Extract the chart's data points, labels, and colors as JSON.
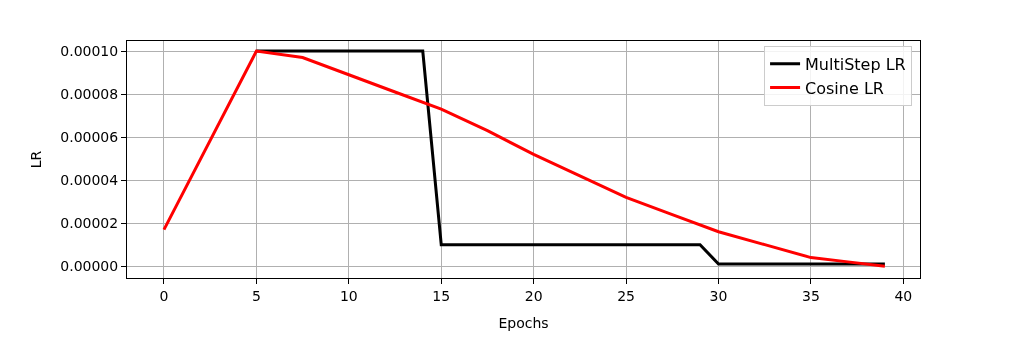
{
  "chart_data": {
    "type": "line",
    "xlabel": "Epochs",
    "ylabel": "LR",
    "series": [
      {
        "name": "MultiStep LR",
        "color": "#000000",
        "x": [
          5,
          14,
          15,
          29,
          30,
          39
        ],
        "values": [
          0.0001,
          0.0001,
          1e-05,
          1e-05,
          1e-06,
          1e-06
        ]
      },
      {
        "name": "Cosine LR",
        "color": "#ff0000",
        "x": [
          0,
          5,
          7.5,
          10,
          12.5,
          15,
          17.5,
          20,
          22.5,
          25,
          27.5,
          30,
          32.5,
          35,
          37,
          39
        ],
        "values": [
          1.7e-05,
          0.0001,
          9.7e-05,
          8.9e-05,
          8.1e-05,
          7.3e-05,
          6.3e-05,
          5.2e-05,
          4.2e-05,
          3.2e-05,
          2.4e-05,
          1.6e-05,
          1e-05,
          4e-06,
          2e-06,
          0
        ]
      }
    ],
    "xlim": [
      -2,
      40.9
    ],
    "xticks": [
      0,
      5,
      10,
      15,
      20,
      25,
      30,
      35,
      40
    ],
    "ylim": [
      -5.5e-06,
      0.0001047
    ],
    "yticks": [
      {
        "value": 0,
        "label": "0.00000"
      },
      {
        "value": 2e-05,
        "label": "0.00002"
      },
      {
        "value": 4e-05,
        "label": "0.00004"
      },
      {
        "value": 6e-05,
        "label": "0.00006"
      },
      {
        "value": 8e-05,
        "label": "0.00008"
      },
      {
        "value": 0.0001,
        "label": "0.00010"
      }
    ],
    "grid": true,
    "legend": "top right",
    "marker": "none",
    "line_style": "solid"
  }
}
